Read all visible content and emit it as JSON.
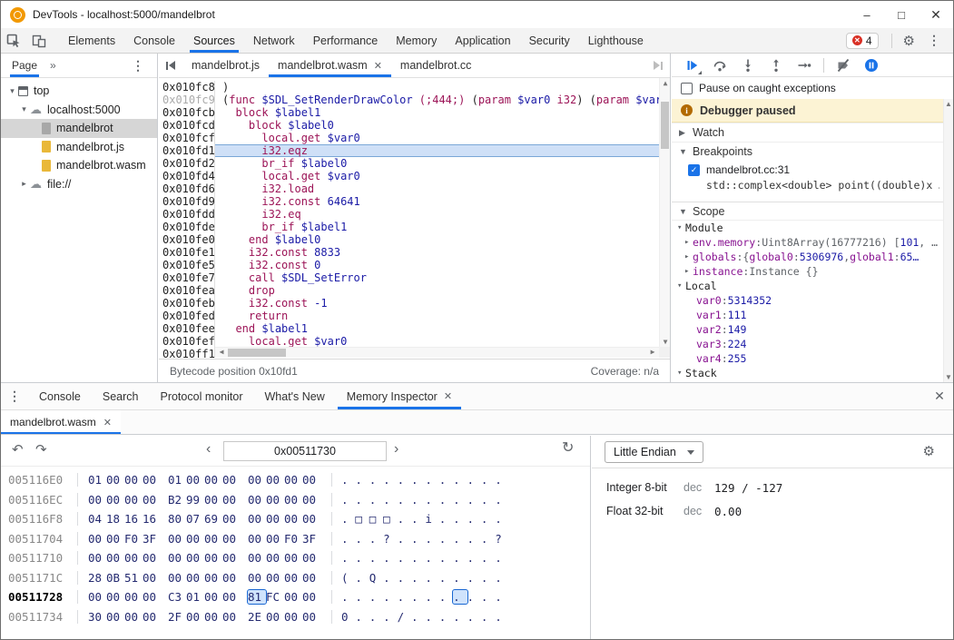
{
  "colors": {
    "accent": "#1a73e8",
    "error_red": "#d93025",
    "banner_yellow": "#fcf3d4",
    "keyword": "#9c1457",
    "literal_blue": "#1a1aa6",
    "property_purple": "#881391",
    "logo_orange": "#f29900"
  },
  "window": {
    "title": "DevTools - localhost:5000/mandelbrot"
  },
  "toolbar": {
    "tabs": [
      "Elements",
      "Console",
      "Sources",
      "Network",
      "Performance",
      "Memory",
      "Application",
      "Security",
      "Lighthouse"
    ],
    "active_tab": "Sources",
    "error_badge": "4"
  },
  "sources": {
    "page_pane": {
      "tab_label": "Page",
      "overflow_chevron": "»",
      "tree": [
        {
          "label": "top",
          "depth": 0,
          "expander": "open",
          "icon": "frame"
        },
        {
          "label": "localhost:5000",
          "depth": 1,
          "expander": "open",
          "icon": "cloud"
        },
        {
          "label": "mandelbrot",
          "depth": 2,
          "expander": "none",
          "icon": "file-grey",
          "selected": true
        },
        {
          "label": "mandelbrot.js",
          "depth": 2,
          "expander": "none",
          "icon": "file-yellow"
        },
        {
          "label": "mandelbrot.wasm",
          "depth": 2,
          "expander": "none",
          "icon": "file-yellow"
        },
        {
          "label": "file://",
          "depth": 1,
          "expander": "closed",
          "icon": "cloud"
        }
      ]
    },
    "editor": {
      "tabs": [
        {
          "label": "mandelbrot.js",
          "active": false,
          "closable": false
        },
        {
          "label": "mandelbrot.wasm",
          "active": true,
          "closable": true
        },
        {
          "label": "mandelbrot.cc",
          "active": false,
          "closable": false
        }
      ]
    },
    "code_lines": [
      {
        "a": "0x010fc8",
        "seg": [
          [
            "p",
            ")"
          ]
        ]
      },
      {
        "a": "0x010fc9",
        "dim": true,
        "seg": [
          [
            "p",
            "("
          ],
          [
            "k",
            "func"
          ],
          [
            "p",
            " "
          ],
          [
            "v",
            "$SDL_SetRenderDrawColor"
          ],
          [
            "p",
            " "
          ],
          [
            "k",
            "(;444;)"
          ],
          [
            "p",
            " ("
          ],
          [
            "k",
            "param"
          ],
          [
            "p",
            " "
          ],
          [
            "v",
            "$var0"
          ],
          [
            "p",
            " "
          ],
          [
            "k",
            "i32"
          ],
          [
            "p",
            ") ("
          ],
          [
            "k",
            "param"
          ],
          [
            "p",
            " "
          ],
          [
            "v",
            "$var1"
          ],
          [
            "p",
            " i"
          ]
        ]
      },
      {
        "a": "0x010fcb",
        "seg": [
          [
            "p",
            "  "
          ],
          [
            "k",
            "block"
          ],
          [
            "p",
            " "
          ],
          [
            "v",
            "$label1"
          ]
        ]
      },
      {
        "a": "0x010fcd",
        "seg": [
          [
            "p",
            "    "
          ],
          [
            "k",
            "block"
          ],
          [
            "p",
            " "
          ],
          [
            "v",
            "$label0"
          ]
        ]
      },
      {
        "a": "0x010fcf",
        "seg": [
          [
            "p",
            "      "
          ],
          [
            "k",
            "local.get"
          ],
          [
            "p",
            " "
          ],
          [
            "v",
            "$var0"
          ]
        ]
      },
      {
        "a": "0x010fd1",
        "hl": true,
        "seg": [
          [
            "p",
            "      "
          ],
          [
            "k",
            "i32.eqz"
          ]
        ]
      },
      {
        "a": "0x010fd2",
        "seg": [
          [
            "p",
            "      "
          ],
          [
            "k",
            "br_if"
          ],
          [
            "p",
            " "
          ],
          [
            "v",
            "$label0"
          ]
        ]
      },
      {
        "a": "0x010fd4",
        "seg": [
          [
            "p",
            "      "
          ],
          [
            "k",
            "local.get"
          ],
          [
            "p",
            " "
          ],
          [
            "v",
            "$var0"
          ]
        ]
      },
      {
        "a": "0x010fd6",
        "seg": [
          [
            "p",
            "      "
          ],
          [
            "k",
            "i32.load"
          ]
        ]
      },
      {
        "a": "0x010fd9",
        "seg": [
          [
            "p",
            "      "
          ],
          [
            "k",
            "i32.const"
          ],
          [
            "p",
            " "
          ],
          [
            "v",
            "64641"
          ]
        ]
      },
      {
        "a": "0x010fdd",
        "seg": [
          [
            "p",
            "      "
          ],
          [
            "k",
            "i32.eq"
          ]
        ]
      },
      {
        "a": "0x010fde",
        "seg": [
          [
            "p",
            "      "
          ],
          [
            "k",
            "br_if"
          ],
          [
            "p",
            " "
          ],
          [
            "v",
            "$label1"
          ]
        ]
      },
      {
        "a": "0x010fe0",
        "seg": [
          [
            "p",
            "    "
          ],
          [
            "k",
            "end"
          ],
          [
            "p",
            " "
          ],
          [
            "v",
            "$label0"
          ]
        ]
      },
      {
        "a": "0x010fe1",
        "seg": [
          [
            "p",
            "    "
          ],
          [
            "k",
            "i32.const"
          ],
          [
            "p",
            " "
          ],
          [
            "v",
            "8833"
          ]
        ]
      },
      {
        "a": "0x010fe5",
        "seg": [
          [
            "p",
            "    "
          ],
          [
            "k",
            "i32.const"
          ],
          [
            "p",
            " "
          ],
          [
            "v",
            "0"
          ]
        ]
      },
      {
        "a": "0x010fe7",
        "seg": [
          [
            "p",
            "    "
          ],
          [
            "k",
            "call"
          ],
          [
            "p",
            " "
          ],
          [
            "v",
            "$SDL_SetError"
          ]
        ]
      },
      {
        "a": "0x010fea",
        "seg": [
          [
            "p",
            "    "
          ],
          [
            "k",
            "drop"
          ]
        ]
      },
      {
        "a": "0x010feb",
        "seg": [
          [
            "p",
            "    "
          ],
          [
            "k",
            "i32.const"
          ],
          [
            "p",
            " "
          ],
          [
            "v",
            "-1"
          ]
        ]
      },
      {
        "a": "0x010fed",
        "seg": [
          [
            "p",
            "    "
          ],
          [
            "k",
            "return"
          ]
        ]
      },
      {
        "a": "0x010fee",
        "seg": [
          [
            "p",
            "  "
          ],
          [
            "k",
            "end"
          ],
          [
            "p",
            " "
          ],
          [
            "v",
            "$label1"
          ]
        ]
      },
      {
        "a": "0x010fef",
        "seg": [
          [
            "p",
            "    "
          ],
          [
            "k",
            "local.get"
          ],
          [
            "p",
            " "
          ],
          [
            "v",
            "$var0"
          ]
        ]
      },
      {
        "a": "0x010ff1",
        "seg": []
      }
    ],
    "status_bar": {
      "left": "Bytecode position 0x10fd1",
      "right": "Coverage: n/a"
    }
  },
  "debugger": {
    "checkbox_label": "Pause on caught exceptions",
    "paused_message": "Debugger paused",
    "watch_label": "Watch",
    "breakpoints_label": "Breakpoints",
    "scope_label": "Scope",
    "breakpoint": {
      "checked": true,
      "location": "mandelbrot.cc:31",
      "snippet": "std::complex<double> point((double)x …"
    },
    "scope": {
      "module_label": "Module",
      "module_items": [
        {
          "name": "env.memory",
          "preview": [
            [
              "g",
              "Uint8Array(16777216) ["
            ],
            [
              "n",
              "101"
            ],
            [
              "g",
              ", …"
            ]
          ]
        },
        {
          "name": "globals",
          "preview": [
            [
              "g",
              "{"
            ],
            [
              "pr",
              "global0"
            ],
            [
              "g",
              ": "
            ],
            [
              "n",
              "5306976"
            ],
            [
              "g",
              ", "
            ],
            [
              "pr",
              "global1"
            ],
            [
              "g",
              ": "
            ],
            [
              "n",
              "65…"
            ]
          ]
        },
        {
          "name": "instance",
          "preview": [
            [
              "g",
              "Instance {}"
            ]
          ]
        }
      ],
      "local_label": "Local",
      "locals": [
        {
          "name": "var0",
          "value": "5314352"
        },
        {
          "name": "var1",
          "value": "111"
        },
        {
          "name": "var2",
          "value": "149"
        },
        {
          "name": "var3",
          "value": "224"
        },
        {
          "name": "var4",
          "value": "255"
        }
      ],
      "stack_label": "Stack"
    }
  },
  "drawer": {
    "tabs": [
      "Console",
      "Search",
      "Protocol monitor",
      "What's New",
      "Memory Inspector"
    ],
    "active_tab": "Memory Inspector"
  },
  "memory": {
    "file_tab": "mandelbrot.wasm",
    "address_input": "0x00511730",
    "endianness": "Little Endian",
    "selected": {
      "row": 6,
      "col": 8
    },
    "hex_rows": [
      {
        "addr": "005116E0",
        "bytes": [
          "01",
          "00",
          "00",
          "00",
          "01",
          "00",
          "00",
          "00",
          "00",
          "00",
          "00",
          "00"
        ],
        "ascii": [
          ".",
          ".",
          ".",
          ".",
          ".",
          ".",
          ".",
          ".",
          ".",
          ".",
          ".",
          "."
        ]
      },
      {
        "addr": "005116EC",
        "bytes": [
          "00",
          "00",
          "00",
          "00",
          "B2",
          "99",
          "00",
          "00",
          "00",
          "00",
          "00",
          "00"
        ],
        "ascii": [
          ".",
          ".",
          ".",
          ".",
          ".",
          ".",
          ".",
          ".",
          ".",
          ".",
          ".",
          "."
        ]
      },
      {
        "addr": "005116F8",
        "bytes": [
          "04",
          "18",
          "16",
          "16",
          "80",
          "07",
          "69",
          "00",
          "00",
          "00",
          "00",
          "00"
        ],
        "ascii": [
          ".",
          "□",
          "□",
          "□",
          ".",
          ".",
          "i",
          ".",
          ".",
          ".",
          ".",
          "."
        ]
      },
      {
        "addr": "00511704",
        "bytes": [
          "00",
          "00",
          "F0",
          "3F",
          "00",
          "00",
          "00",
          "00",
          "00",
          "00",
          "F0",
          "3F"
        ],
        "ascii": [
          ".",
          ".",
          ".",
          "?",
          ".",
          ".",
          ".",
          ".",
          ".",
          ".",
          ".",
          "?"
        ]
      },
      {
        "addr": "00511710",
        "bytes": [
          "00",
          "00",
          "00",
          "00",
          "00",
          "00",
          "00",
          "00",
          "00",
          "00",
          "00",
          "00"
        ],
        "ascii": [
          ".",
          ".",
          ".",
          ".",
          ".",
          ".",
          ".",
          ".",
          ".",
          ".",
          ".",
          "."
        ]
      },
      {
        "addr": "0051171C",
        "bytes": [
          "28",
          "0B",
          "51",
          "00",
          "00",
          "00",
          "00",
          "00",
          "00",
          "00",
          "00",
          "00"
        ],
        "ascii": [
          "(",
          ".",
          "Q",
          ".",
          ".",
          ".",
          ".",
          ".",
          ".",
          ".",
          ".",
          "."
        ]
      },
      {
        "addr": "00511728",
        "bold": true,
        "bytes": [
          "00",
          "00",
          "00",
          "00",
          "C3",
          "01",
          "00",
          "00",
          "81",
          "FC",
          "00",
          "00"
        ],
        "ascii": [
          ".",
          ".",
          ".",
          ".",
          ".",
          ".",
          ".",
          ".",
          ".",
          ".",
          ".",
          "."
        ]
      },
      {
        "addr": "00511734",
        "bytes": [
          "30",
          "00",
          "00",
          "00",
          "2F",
          "00",
          "00",
          "00",
          "2E",
          "00",
          "00",
          "00"
        ],
        "ascii": [
          "0",
          ".",
          ".",
          ".",
          "/",
          ".",
          ".",
          ".",
          ".",
          ".",
          ".",
          "."
        ]
      }
    ],
    "interpreter": [
      {
        "type": "Integer 8-bit",
        "radix": "dec",
        "value": "129 / -127"
      },
      {
        "type": "Float 32-bit",
        "radix": "dec",
        "value": "0.00"
      }
    ]
  }
}
